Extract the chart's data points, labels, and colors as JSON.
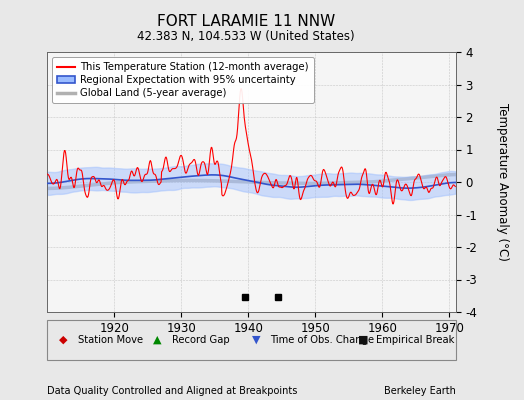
{
  "title": "FORT LARAMIE 11 NNW",
  "subtitle": "42.383 N, 104.533 W (United States)",
  "xlabel_left": "Data Quality Controlled and Aligned at Breakpoints",
  "xlabel_right": "Berkeley Earth",
  "ylabel": "Temperature Anomaly (°C)",
  "xlim": [
    1910,
    1971
  ],
  "ylim": [
    -4,
    4
  ],
  "yticks": [
    -4,
    -3,
    -2,
    -1,
    0,
    1,
    2,
    3,
    4
  ],
  "xticks": [
    1920,
    1930,
    1940,
    1950,
    1960,
    1970
  ],
  "background_color": "#e8e8e8",
  "plot_bg_color": "#f5f5f5",
  "legend_labels": [
    "This Temperature Station (12-month average)",
    "Regional Expectation with 95% uncertainty",
    "Global Land (5-year average)"
  ],
  "empirical_breaks": [
    1939.5,
    1944.5
  ],
  "seed": 42
}
